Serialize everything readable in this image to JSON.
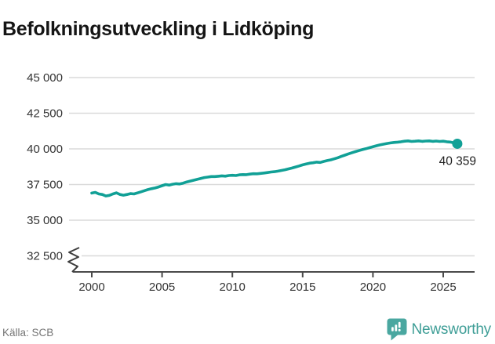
{
  "header": {
    "title": "Befolkningsutveckling i Lidköping"
  },
  "footer": {
    "source": "Källa: SCB",
    "brand_name": "Newsworthy"
  },
  "colors": {
    "line": "#11a096",
    "grid": "#dadada",
    "axis": "#4a4a4a",
    "tick_text": "#333333",
    "value_label_text": "#1f1f1f",
    "title_text": "#151515",
    "source_text": "#767676",
    "brand_icon": "#4aa7a0",
    "brand_text": "#3f9e97"
  },
  "chart_data": {
    "type": "line",
    "title": "Befolkningsutveckling i Lidköping",
    "xlabel": "",
    "ylabel": "",
    "grid": "horizontal",
    "legend": "none",
    "axis_break_at_bottom": true,
    "xlim": [
      1998.7,
      2027.3
    ],
    "ylim_displayed": [
      32500,
      45000
    ],
    "x_ticks": [
      {
        "value": 2000,
        "label": "2000"
      },
      {
        "value": 2005,
        "label": "2005"
      },
      {
        "value": 2010,
        "label": "2010"
      },
      {
        "value": 2015,
        "label": "2015"
      },
      {
        "value": 2020,
        "label": "2020"
      },
      {
        "value": 2025,
        "label": "2025"
      }
    ],
    "y_ticks": [
      {
        "value": 32500,
        "label": "32 500"
      },
      {
        "value": 35000,
        "label": "35 000"
      },
      {
        "value": 37500,
        "label": "37 500"
      },
      {
        "value": 40000,
        "label": "40 000"
      },
      {
        "value": 42500,
        "label": "42 500"
      },
      {
        "value": 45000,
        "label": "45 000"
      }
    ],
    "end_point": {
      "x": 2026.0,
      "value": 40359,
      "label": "40 359"
    },
    "series": [
      {
        "name": "Befolkning i Lidköping",
        "color": "#11a096",
        "points": [
          [
            2000,
            36900
          ],
          [
            2000.25,
            36950
          ],
          [
            2000.5,
            36840
          ],
          [
            2000.75,
            36800
          ],
          [
            2001,
            36700
          ],
          [
            2001.25,
            36740
          ],
          [
            2001.5,
            36840
          ],
          [
            2001.75,
            36920
          ],
          [
            2002,
            36810
          ],
          [
            2002.25,
            36750
          ],
          [
            2002.5,
            36800
          ],
          [
            2002.75,
            36860
          ],
          [
            2003,
            36840
          ],
          [
            2003.25,
            36910
          ],
          [
            2003.5,
            36990
          ],
          [
            2003.75,
            37070
          ],
          [
            2004,
            37150
          ],
          [
            2004.25,
            37210
          ],
          [
            2004.5,
            37260
          ],
          [
            2004.75,
            37330
          ],
          [
            2005,
            37420
          ],
          [
            2005.25,
            37500
          ],
          [
            2005.5,
            37460
          ],
          [
            2005.75,
            37520
          ],
          [
            2006,
            37560
          ],
          [
            2006.25,
            37540
          ],
          [
            2006.5,
            37600
          ],
          [
            2006.75,
            37680
          ],
          [
            2007,
            37740
          ],
          [
            2007.25,
            37800
          ],
          [
            2007.5,
            37860
          ],
          [
            2007.75,
            37930
          ],
          [
            2008,
            37990
          ],
          [
            2008.25,
            38020
          ],
          [
            2008.5,
            38060
          ],
          [
            2008.75,
            38060
          ],
          [
            2009,
            38080
          ],
          [
            2009.25,
            38110
          ],
          [
            2009.5,
            38090
          ],
          [
            2009.75,
            38130
          ],
          [
            2010,
            38150
          ],
          [
            2010.25,
            38130
          ],
          [
            2010.5,
            38180
          ],
          [
            2010.75,
            38200
          ],
          [
            2011,
            38190
          ],
          [
            2011.25,
            38230
          ],
          [
            2011.5,
            38260
          ],
          [
            2011.75,
            38250
          ],
          [
            2012,
            38280
          ],
          [
            2012.25,
            38310
          ],
          [
            2012.5,
            38340
          ],
          [
            2012.75,
            38380
          ],
          [
            2013,
            38400
          ],
          [
            2013.25,
            38440
          ],
          [
            2013.5,
            38490
          ],
          [
            2013.75,
            38540
          ],
          [
            2014,
            38600
          ],
          [
            2014.25,
            38660
          ],
          [
            2014.5,
            38730
          ],
          [
            2014.75,
            38800
          ],
          [
            2015,
            38880
          ],
          [
            2015.25,
            38940
          ],
          [
            2015.5,
            39000
          ],
          [
            2015.75,
            39030
          ],
          [
            2016,
            39070
          ],
          [
            2016.25,
            39050
          ],
          [
            2016.5,
            39120
          ],
          [
            2016.75,
            39180
          ],
          [
            2017,
            39230
          ],
          [
            2017.25,
            39300
          ],
          [
            2017.5,
            39380
          ],
          [
            2017.75,
            39470
          ],
          [
            2018,
            39560
          ],
          [
            2018.25,
            39650
          ],
          [
            2018.5,
            39730
          ],
          [
            2018.75,
            39810
          ],
          [
            2019,
            39880
          ],
          [
            2019.25,
            39950
          ],
          [
            2019.5,
            40010
          ],
          [
            2019.75,
            40080
          ],
          [
            2020,
            40150
          ],
          [
            2020.25,
            40220
          ],
          [
            2020.5,
            40280
          ],
          [
            2020.75,
            40330
          ],
          [
            2021,
            40380
          ],
          [
            2021.25,
            40420
          ],
          [
            2021.5,
            40450
          ],
          [
            2021.75,
            40470
          ],
          [
            2022,
            40500
          ],
          [
            2022.25,
            40540
          ],
          [
            2022.5,
            40560
          ],
          [
            2022.75,
            40520
          ],
          [
            2023,
            40540
          ],
          [
            2023.25,
            40560
          ],
          [
            2023.5,
            40530
          ],
          [
            2023.75,
            40550
          ],
          [
            2024,
            40560
          ],
          [
            2024.25,
            40530
          ],
          [
            2024.5,
            40550
          ],
          [
            2024.75,
            40520
          ],
          [
            2025,
            40540
          ],
          [
            2025.25,
            40500
          ],
          [
            2025.5,
            40480
          ],
          [
            2025.75,
            40420
          ],
          [
            2026,
            40359
          ]
        ]
      }
    ]
  }
}
